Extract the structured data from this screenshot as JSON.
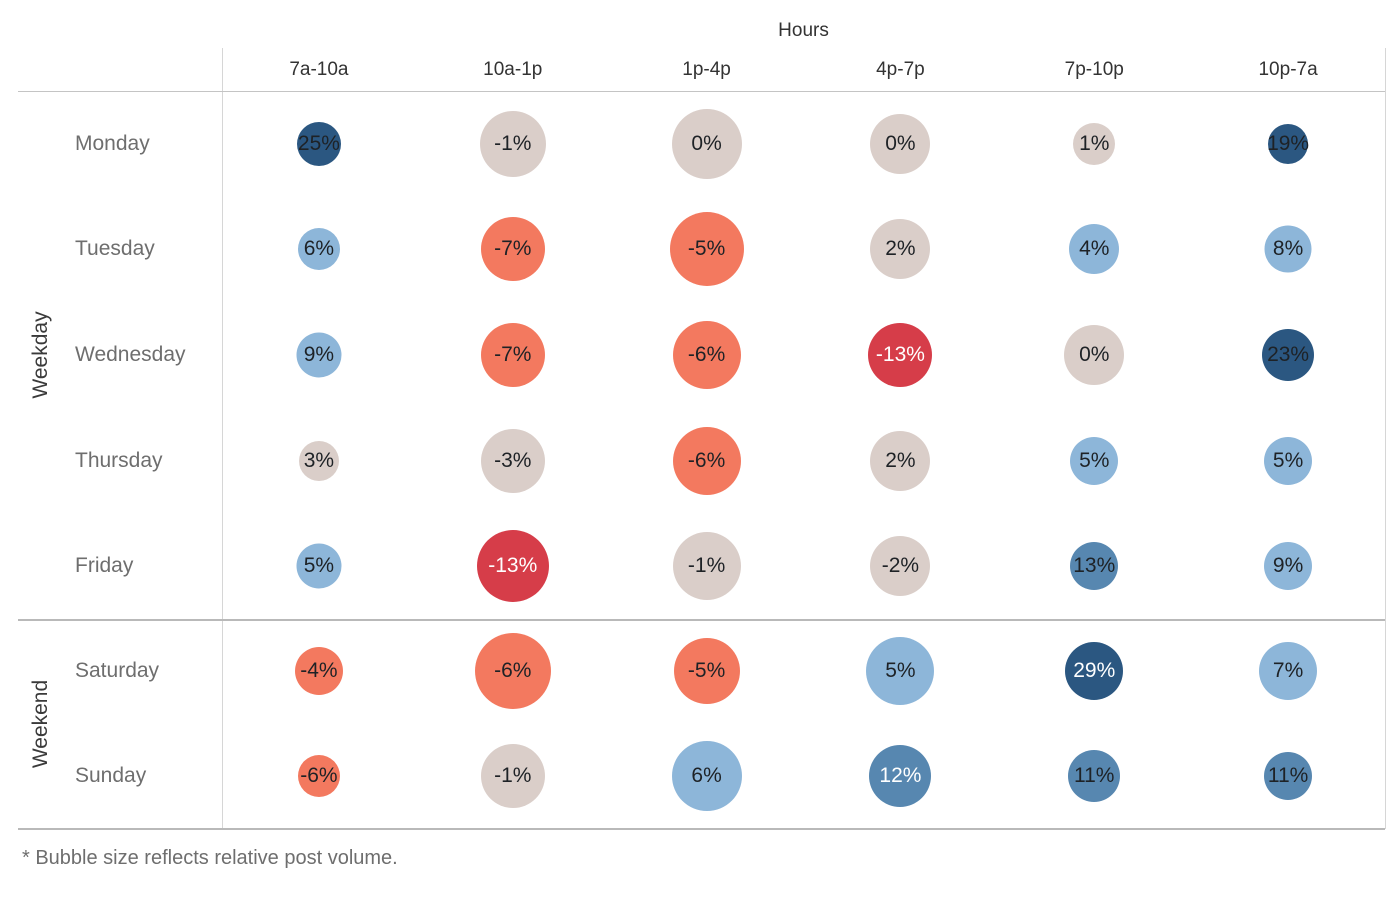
{
  "palette": {
    "dark_blue": "#2B5781",
    "medium_blue": "#5787B0",
    "light_blue": "#8DB6D9",
    "neutral": "#DACEC9",
    "salmon": "#F3795F",
    "red": "#D63D49",
    "label_dark": "#1E2226",
    "label_light": "#FFFFFF"
  },
  "chart_data": {
    "type": "bubble-matrix",
    "title": "Hours",
    "xlabel": "Hours",
    "ylabel": "Weekday / Weekend",
    "size_note": "Bubble size reflects relative post volume",
    "columns": [
      "7a-10a",
      "10a-1p",
      "1p-4p",
      "4p-7p",
      "7p-10p",
      "10p-7a"
    ],
    "row_groups": [
      {
        "label": "Weekday",
        "rows": [
          "Monday",
          "Tuesday",
          "Wednesday",
          "Thursday",
          "Friday"
        ]
      },
      {
        "label": "Weekend",
        "rows": [
          "Saturday",
          "Sunday"
        ]
      }
    ],
    "rows": [
      {
        "day": "Monday",
        "group": "Weekday",
        "bubbles": [
          {
            "value": 25,
            "label": "25%",
            "size": 44,
            "tone": "dark",
            "white_label": false
          },
          {
            "value": -1,
            "label": "-1%",
            "size": 66,
            "tone": "neutral",
            "white_label": false
          },
          {
            "value": 0,
            "label": "0%",
            "size": 70,
            "tone": "neutral",
            "white_label": false
          },
          {
            "value": 0,
            "label": "0%",
            "size": 60,
            "tone": "neutral",
            "white_label": false
          },
          {
            "value": 1,
            "label": "1%",
            "size": 42,
            "tone": "neutral",
            "white_label": false
          },
          {
            "value": 19,
            "label": "19%",
            "size": 40,
            "tone": "dark",
            "white_label": false
          }
        ]
      },
      {
        "day": "Tuesday",
        "group": "Weekday",
        "bubbles": [
          {
            "value": 6,
            "label": "6%",
            "size": 42,
            "tone": "light",
            "white_label": false
          },
          {
            "value": -7,
            "label": "-7%",
            "size": 64,
            "tone": "salmon",
            "white_label": false
          },
          {
            "value": -5,
            "label": "-5%",
            "size": 74,
            "tone": "salmon",
            "white_label": false
          },
          {
            "value": 2,
            "label": "2%",
            "size": 60,
            "tone": "neutral",
            "white_label": false
          },
          {
            "value": 4,
            "label": "4%",
            "size": 50,
            "tone": "light",
            "white_label": false
          },
          {
            "value": 8,
            "label": "8%",
            "size": 47,
            "tone": "light",
            "white_label": false
          }
        ]
      },
      {
        "day": "Wednesday",
        "group": "Weekday",
        "bubbles": [
          {
            "value": 9,
            "label": "9%",
            "size": 45,
            "tone": "light",
            "white_label": false
          },
          {
            "value": -7,
            "label": "-7%",
            "size": 64,
            "tone": "salmon",
            "white_label": false
          },
          {
            "value": -6,
            "label": "-6%",
            "size": 68,
            "tone": "salmon",
            "white_label": false
          },
          {
            "value": -13,
            "label": "-13%",
            "size": 64,
            "tone": "red",
            "white_label": true
          },
          {
            "value": 0,
            "label": "0%",
            "size": 60,
            "tone": "neutral",
            "white_label": false
          },
          {
            "value": 23,
            "label": "23%",
            "size": 52,
            "tone": "dark",
            "white_label": false
          }
        ]
      },
      {
        "day": "Thursday",
        "group": "Weekday",
        "bubbles": [
          {
            "value": 3,
            "label": "3%",
            "size": 40,
            "tone": "neutral",
            "white_label": false
          },
          {
            "value": -3,
            "label": "-3%",
            "size": 64,
            "tone": "neutral",
            "white_label": false
          },
          {
            "value": -6,
            "label": "-6%",
            "size": 68,
            "tone": "salmon",
            "white_label": false
          },
          {
            "value": 2,
            "label": "2%",
            "size": 60,
            "tone": "neutral",
            "white_label": false
          },
          {
            "value": 5,
            "label": "5%",
            "size": 48,
            "tone": "light",
            "white_label": false
          },
          {
            "value": 5,
            "label": "5%",
            "size": 48,
            "tone": "light",
            "white_label": false
          }
        ]
      },
      {
        "day": "Friday",
        "group": "Weekday",
        "bubbles": [
          {
            "value": 5,
            "label": "5%",
            "size": 45,
            "tone": "light",
            "white_label": false
          },
          {
            "value": -13,
            "label": "-13%",
            "size": 72,
            "tone": "red",
            "white_label": true
          },
          {
            "value": -1,
            "label": "-1%",
            "size": 68,
            "tone": "neutral",
            "white_label": false
          },
          {
            "value": -2,
            "label": "-2%",
            "size": 60,
            "tone": "neutral",
            "white_label": false
          },
          {
            "value": 13,
            "label": "13%",
            "size": 48,
            "tone": "medium",
            "white_label": false
          },
          {
            "value": 9,
            "label": "9%",
            "size": 48,
            "tone": "light",
            "white_label": false
          }
        ]
      },
      {
        "day": "Saturday",
        "group": "Weekend",
        "bubbles": [
          {
            "value": -4,
            "label": "-4%",
            "size": 48,
            "tone": "salmon",
            "white_label": false
          },
          {
            "value": -6,
            "label": "-6%",
            "size": 76,
            "tone": "salmon",
            "white_label": false
          },
          {
            "value": -5,
            "label": "-5%",
            "size": 66,
            "tone": "salmon",
            "white_label": false
          },
          {
            "value": 5,
            "label": "5%",
            "size": 68,
            "tone": "light",
            "white_label": false
          },
          {
            "value": 29,
            "label": "29%",
            "size": 58,
            "tone": "dark",
            "white_label": true
          },
          {
            "value": 7,
            "label": "7%",
            "size": 58,
            "tone": "light",
            "white_label": false
          }
        ]
      },
      {
        "day": "Sunday",
        "group": "Weekend",
        "bubbles": [
          {
            "value": -6,
            "label": "-6%",
            "size": 42,
            "tone": "salmon",
            "white_label": false
          },
          {
            "value": -1,
            "label": "-1%",
            "size": 64,
            "tone": "neutral",
            "white_label": false
          },
          {
            "value": 6,
            "label": "6%",
            "size": 70,
            "tone": "light",
            "white_label": false
          },
          {
            "value": 12,
            "label": "12%",
            "size": 62,
            "tone": "medium",
            "white_label": true
          },
          {
            "value": 11,
            "label": "11%",
            "size": 52,
            "tone": "medium",
            "white_label": false
          },
          {
            "value": 11,
            "label": "11%",
            "size": 48,
            "tone": "medium",
            "white_label": false
          }
        ]
      },
      {
        "_comment": ""
      }
    ],
    "footnote": "* Bubble size reflects relative post volume."
  }
}
